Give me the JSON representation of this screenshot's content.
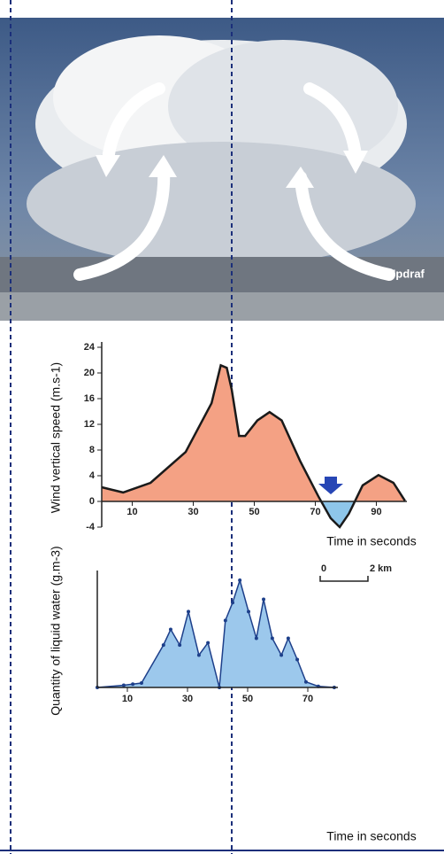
{
  "photo": {
    "label": "Updraf"
  },
  "chart_data": [
    {
      "type": "area",
      "ylabel": "Wind vertical speed (m.s-1)",
      "xlabel": "Time in seconds",
      "x": [
        0,
        7,
        16,
        27.5,
        36,
        39,
        41,
        42.6,
        45,
        47,
        51,
        55,
        59,
        65,
        71,
        75,
        78,
        81,
        85.5,
        90.7,
        95.6,
        99.4
      ],
      "values": [
        2.2,
        1.4,
        2.9,
        7.7,
        15.3,
        21.2,
        20.8,
        17.4,
        10.2,
        10.2,
        12.6,
        13.9,
        12.6,
        6.3,
        0.8,
        -2.6,
        -4,
        -1.9,
        2.5,
        4.1,
        2.9,
        0.1
      ],
      "xlim": [
        0,
        100
      ],
      "ylim": [
        -4,
        24
      ],
      "xticks": [
        10,
        30,
        50,
        70,
        90
      ],
      "yticks": [
        24,
        20,
        16,
        12,
        8,
        4,
        0,
        -4
      ],
      "color": "#f4a184",
      "negative_color": "#8ec6ea",
      "line_color": "#1a1a1a"
    },
    {
      "type": "area",
      "ylabel": "Quantity of liquid water (g.m-3)",
      "xlabel": "Time in seconds",
      "x": [
        0,
        8.8,
        11.8,
        14.7,
        22,
        24.4,
        27.4,
        30.3,
        33.8,
        36.8,
        40.6,
        42.6,
        45,
        47.4,
        50.3,
        52.9,
        55.3,
        58.2,
        61.2,
        63.5,
        66.5,
        69.4,
        73.5,
        78.8
      ],
      "values": [
        0,
        0.2,
        0.3,
        0.4,
        3.8,
        5.2,
        3.8,
        6.8,
        2.9,
        4.0,
        0,
        6.0,
        7.6,
        9.6,
        6.8,
        4.4,
        7.9,
        4.4,
        2.9,
        4.4,
        2.5,
        0.5,
        0.1,
        0
      ],
      "xlim": [
        0,
        80
      ],
      "ylim": [
        0,
        10
      ],
      "xticks": [
        10,
        30,
        50,
        70
      ],
      "color": "#9cc8ec",
      "line_color": "#1d3f8a",
      "markers": true,
      "annotations": [
        "0",
        "2 km"
      ]
    }
  ]
}
